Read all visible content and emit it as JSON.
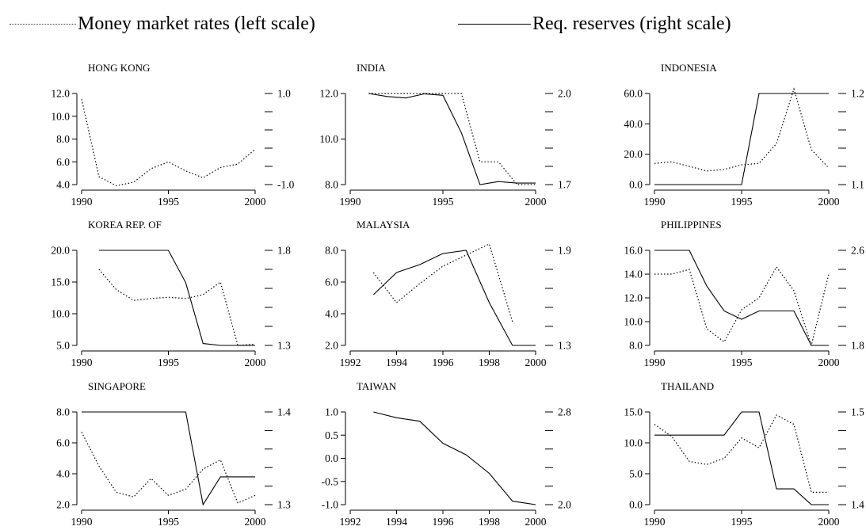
{
  "legend": {
    "money_market": "Money market rates (left scale)",
    "reserves": "Req. reserves (right scale)"
  },
  "chart_data": [
    {
      "type": "line",
      "title": "HONG KONG",
      "xlim": [
        1990,
        2000
      ],
      "xticks": [
        1990,
        1995,
        2000
      ],
      "ylim_left": [
        4.0,
        12.0
      ],
      "yticks_left": [
        4.0,
        6.0,
        8.0,
        10.0,
        12.0
      ],
      "ylim_right": [
        -1.0,
        1.0
      ],
      "yticks_right_labeled": [
        -1.0,
        1.0
      ],
      "series": [
        {
          "name": "Money market rates (left scale)",
          "style": "dotted",
          "x": [
            1990,
            1991,
            1992,
            1993,
            1994,
            1995,
            1996,
            1997,
            1998,
            1999,
            2000
          ],
          "y": [
            11.5,
            4.7,
            3.9,
            4.2,
            5.4,
            6.0,
            5.2,
            4.6,
            5.5,
            5.8,
            7.1
          ]
        }
      ]
    },
    {
      "type": "line",
      "title": "INDIA",
      "xlim": [
        1990,
        2000
      ],
      "xticks": [
        1990,
        1995,
        2000
      ],
      "ylim_left": [
        8.0,
        12.0
      ],
      "yticks_left": [
        8.0,
        10.0,
        12.0
      ],
      "ylim_right": [
        1.7,
        2.0
      ],
      "yticks_right_labeled": [
        1.7,
        2.0
      ],
      "series": [
        {
          "name": "Money market rates (left scale)",
          "style": "dotted",
          "x": [
            1991,
            1992,
            1993,
            1994,
            1995,
            1996,
            1997,
            1998,
            1999,
            2000
          ],
          "y": [
            12.0,
            12.0,
            12.0,
            12.0,
            12.0,
            12.0,
            9.0,
            9.0,
            8.0,
            8.0
          ]
        },
        {
          "name": "Req. reserves (right scale)",
          "style": "solid",
          "axis": "right",
          "x": [
            1991,
            1992,
            1993,
            1994,
            1995,
            1996,
            1997,
            1998,
            1999,
            2000
          ],
          "y": [
            2.0,
            1.99,
            1.985,
            1.999,
            1.994,
            1.87,
            1.7,
            1.71,
            1.705,
            1.705
          ]
        }
      ]
    },
    {
      "type": "line",
      "title": "INDONESIA",
      "xlim": [
        1990,
        2000
      ],
      "xticks": [
        1990,
        1995,
        2000
      ],
      "ylim_left": [
        0.0,
        60.0
      ],
      "yticks_left": [
        0.0,
        20.0,
        40.0,
        60.0
      ],
      "ylim_right": [
        1.1,
        1.2
      ],
      "yticks_right_labeled": [
        1.1,
        1.2
      ],
      "series": [
        {
          "name": "Money market rates (left scale)",
          "style": "dotted",
          "x": [
            1990,
            1991,
            1992,
            1993,
            1994,
            1995,
            1996,
            1997,
            1998,
            1999,
            2000
          ],
          "y": [
            14,
            15,
            12,
            9,
            10,
            13,
            14,
            27,
            63,
            23,
            11
          ]
        },
        {
          "name": "Req. reserves (right scale)",
          "style": "solid",
          "axis": "right",
          "x": [
            1990,
            1995,
            1996,
            2000
          ],
          "y": [
            1.1,
            1.1,
            1.2,
            1.2
          ]
        }
      ]
    },
    {
      "type": "line",
      "title": "KOREA REP. OF",
      "xlim": [
        1990,
        2000
      ],
      "xticks": [
        1990,
        1995,
        2000
      ],
      "ylim_left": [
        5.0,
        20.0
      ],
      "yticks_left": [
        5.0,
        10.0,
        15.0,
        20.0
      ],
      "ylim_right": [
        1.3,
        1.8
      ],
      "yticks_right_labeled": [
        1.3,
        1.8
      ],
      "series": [
        {
          "name": "Money market rates (left scale)",
          "style": "dotted",
          "x": [
            1991,
            1992,
            1993,
            1994,
            1995,
            1996,
            1997,
            1998,
            1999,
            2000
          ],
          "y": [
            17.0,
            13.8,
            12.1,
            12.4,
            12.6,
            12.4,
            13.0,
            15.0,
            5.0,
            5.2
          ]
        },
        {
          "name": "Req. reserves (right scale)",
          "style": "solid",
          "axis": "right",
          "x": [
            1991,
            1995,
            1996,
            1997,
            1998,
            2000
          ],
          "y": [
            1.8,
            1.8,
            1.63,
            1.31,
            1.3,
            1.3
          ]
        }
      ]
    },
    {
      "type": "line",
      "title": "MALAYSIA",
      "xlim": [
        1992,
        2000
      ],
      "xticks": [
        1992,
        1994,
        1996,
        1998,
        2000
      ],
      "ylim_left": [
        2.0,
        8.0
      ],
      "yticks_left": [
        2.0,
        4.0,
        6.0,
        8.0
      ],
      "ylim_right": [
        1.3,
        1.9
      ],
      "yticks_right_labeled": [
        1.3,
        1.9
      ],
      "series": [
        {
          "name": "Money market rates (left scale)",
          "style": "dotted",
          "x": [
            1993,
            1994,
            1995,
            1996,
            1997,
            1998,
            1999
          ],
          "y": [
            6.6,
            4.7,
            5.9,
            7.0,
            7.7,
            8.4,
            3.5
          ]
        },
        {
          "name": "Req. reserves (right scale)",
          "style": "solid",
          "axis": "right",
          "x": [
            1993,
            1994,
            1995,
            1996,
            1997,
            1998,
            1999,
            2000
          ],
          "y": [
            1.62,
            1.76,
            1.81,
            1.88,
            1.9,
            1.57,
            1.3,
            1.3
          ]
        }
      ]
    },
    {
      "type": "line",
      "title": "PHILIPPINES",
      "xlim": [
        1990,
        2000
      ],
      "xticks": [
        1990,
        1995,
        2000
      ],
      "ylim_left": [
        8.0,
        16.0
      ],
      "yticks_left": [
        8.0,
        10.0,
        12.0,
        14.0,
        16.0
      ],
      "ylim_right": [
        1.8,
        2.6
      ],
      "yticks_right_labeled": [
        1.8,
        2.6
      ],
      "series": [
        {
          "name": "Money market rates (left scale)",
          "style": "dotted",
          "x": [
            1990,
            1991,
            1992,
            1993,
            1994,
            1995,
            1996,
            1997,
            1998,
            1999,
            2000
          ],
          "y": [
            14.0,
            14.0,
            14.4,
            9.4,
            8.3,
            11.0,
            12.0,
            14.6,
            12.6,
            8.0,
            14.0
          ]
        },
        {
          "name": "Req. reserves (right scale)",
          "style": "solid",
          "axis": "right",
          "x": [
            1990,
            1992,
            1993,
            1994,
            1995,
            1996,
            1998,
            1999,
            2000
          ],
          "y": [
            2.6,
            2.6,
            2.3,
            2.09,
            2.02,
            2.09,
            2.09,
            1.8,
            1.8
          ]
        }
      ]
    },
    {
      "type": "line",
      "title": "SINGAPORE",
      "xlim": [
        1990,
        2000
      ],
      "xticks": [
        1990,
        1995,
        2000
      ],
      "ylim_left": [
        2.0,
        8.0
      ],
      "yticks_left": [
        2.0,
        4.0,
        6.0,
        8.0
      ],
      "ylim_right": [
        1.3,
        1.4
      ],
      "yticks_right_labeled": [
        1.3,
        1.4
      ],
      "series": [
        {
          "name": "Money market rates (left scale)",
          "style": "dotted",
          "x": [
            1990,
            1991,
            1992,
            1993,
            1994,
            1995,
            1996,
            1997,
            1998,
            1999,
            2000
          ],
          "y": [
            6.7,
            4.5,
            2.8,
            2.5,
            3.7,
            2.6,
            3.0,
            4.3,
            4.9,
            2.1,
            2.6
          ]
        },
        {
          "name": "Req. reserves (right scale)",
          "style": "solid",
          "axis": "right",
          "x": [
            1990,
            1996,
            1997,
            1998,
            2000
          ],
          "y": [
            1.4,
            1.4,
            1.3,
            1.33,
            1.33
          ]
        }
      ]
    },
    {
      "type": "line",
      "title": "TAIWAN",
      "xlim": [
        1992,
        2000
      ],
      "xticks": [
        1992,
        1994,
        1996,
        1998,
        2000
      ],
      "ylim_left": [
        -1.0,
        1.0
      ],
      "yticks_left": [
        -1.0,
        -0.5,
        0.0,
        0.5,
        1.0
      ],
      "ylim_right": [
        2.0,
        2.8
      ],
      "yticks_right_labeled": [
        2.0,
        2.8
      ],
      "series": [
        {
          "name": "Req. reserves (right scale)",
          "style": "solid",
          "axis": "right",
          "x": [
            1993,
            1994,
            1995,
            1996,
            1997,
            1998,
            1999,
            2000
          ],
          "y": [
            2.8,
            2.75,
            2.72,
            2.53,
            2.43,
            2.27,
            2.03,
            2.0
          ]
        }
      ]
    },
    {
      "type": "line",
      "title": "THAILAND",
      "xlim": [
        1990,
        2000
      ],
      "xticks": [
        1990,
        1995,
        2000
      ],
      "ylim_left": [
        0.0,
        15.0
      ],
      "yticks_left": [
        0.0,
        5.0,
        10.0,
        15.0
      ],
      "ylim_right": [
        1.4,
        1.5
      ],
      "yticks_right_labeled": [
        1.4,
        1.5
      ],
      "series": [
        {
          "name": "Money market rates (left scale)",
          "style": "dotted",
          "x": [
            1990,
            1991,
            1992,
            1993,
            1994,
            1995,
            1996,
            1997,
            1998,
            1999,
            2000
          ],
          "y": [
            13.0,
            11.0,
            7.0,
            6.5,
            7.5,
            10.8,
            9.2,
            14.5,
            13.0,
            2.0,
            2.0
          ]
        },
        {
          "name": "Req. reserves (right scale)",
          "style": "solid",
          "axis": "right",
          "x": [
            1990,
            1994,
            1995,
            1996,
            1997,
            1998,
            1999,
            2000
          ],
          "y": [
            1.475,
            1.475,
            1.5,
            1.5,
            1.417,
            1.417,
            1.4,
            1.4
          ]
        }
      ]
    }
  ]
}
